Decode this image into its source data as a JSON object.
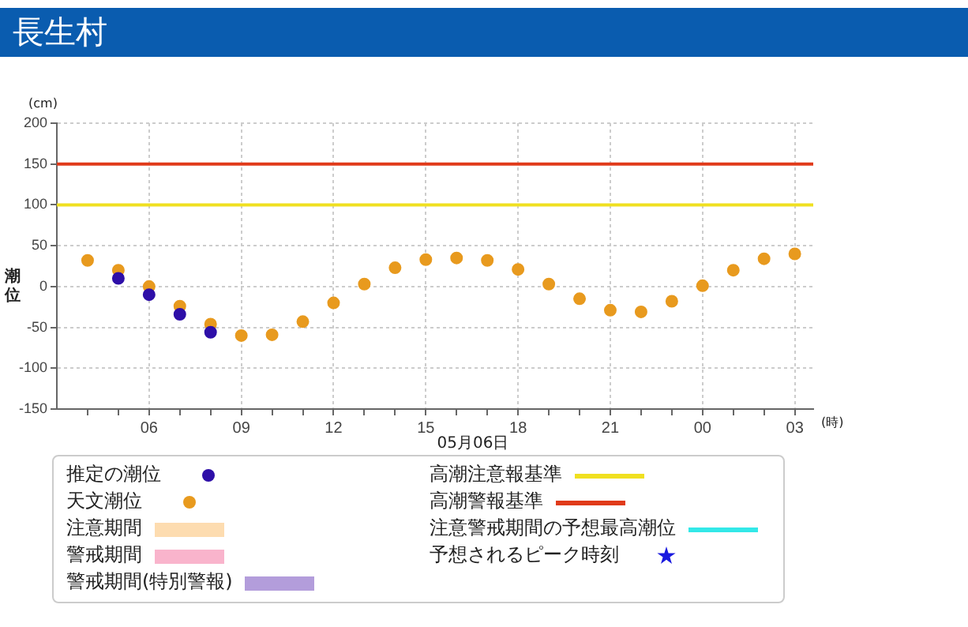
{
  "chart_data": {
    "type": "scatter",
    "title": "長生村",
    "ylabel": "潮位",
    "xlabel": "(時)",
    "annotations": [
      "(cm)",
      "05月06日"
    ],
    "xlim": [
      "--05-06T03:00",
      "--05-07T03:36"
    ],
    "xticks": [
      {
        "value": "--05-06T04:00",
        "label": null
      },
      {
        "value": "--05-06T05:00",
        "label": null
      },
      {
        "value": "--05-06T06:00",
        "label": "06"
      },
      {
        "value": "--05-06T07:00",
        "label": null
      },
      {
        "value": "--05-06T08:00",
        "label": null
      },
      {
        "value": "--05-06T09:00",
        "label": "09"
      },
      {
        "value": "--05-06T10:00",
        "label": null
      },
      {
        "value": "--05-06T11:00",
        "label": null
      },
      {
        "value": "--05-06T12:00",
        "label": "12"
      },
      {
        "value": "--05-06T13:00",
        "label": null
      },
      {
        "value": "--05-06T14:00",
        "label": null
      },
      {
        "value": "--05-06T15:00",
        "label": "15"
      },
      {
        "value": "--05-06T16:00",
        "label": null
      },
      {
        "value": "--05-06T17:00",
        "label": null
      },
      {
        "value": "--05-06T18:00",
        "label": "18"
      },
      {
        "value": "--05-06T19:00",
        "label": null
      },
      {
        "value": "--05-06T20:00",
        "label": null
      },
      {
        "value": "--05-06T21:00",
        "label": "21"
      },
      {
        "value": "--05-06T22:00",
        "label": null
      },
      {
        "value": "--05-06T23:00",
        "label": null
      },
      {
        "value": "--05-07T00:00",
        "label": "00"
      },
      {
        "value": "--05-07T01:00",
        "label": null
      },
      {
        "value": "--05-07T02:00",
        "label": null
      },
      {
        "value": "--05-07T03:00",
        "label": "03"
      }
    ],
    "ylim": [
      -150,
      200
    ],
    "yticks": [
      -150,
      -100,
      -50,
      0,
      50,
      100,
      150,
      200
    ],
    "grid": true,
    "legend": "bottom",
    "marker": "circle",
    "series": [
      {
        "name": "推定の潮位",
        "type": "scatter",
        "color": "#2e0fa8",
        "x": [
          "--05-06T05:00",
          "--05-06T06:00",
          "--05-06T07:00",
          "--05-06T08:00"
        ],
        "values": [
          10,
          -10,
          -34,
          -56
        ]
      },
      {
        "name": "天文潮位",
        "type": "scatter",
        "color": "#e89a1e",
        "x": [
          "--05-06T04:00",
          "--05-06T05:00",
          "--05-06T06:00",
          "--05-06T07:00",
          "--05-06T08:00",
          "--05-06T09:00",
          "--05-06T10:00",
          "--05-06T11:00",
          "--05-06T12:00",
          "--05-06T13:00",
          "--05-06T14:00",
          "--05-06T15:00",
          "--05-06T16:00",
          "--05-06T17:00",
          "--05-06T18:00",
          "--05-06T19:00",
          "--05-06T20:00",
          "--05-06T21:00",
          "--05-06T22:00",
          "--05-06T23:00",
          "--05-07T00:00",
          "--05-07T01:00",
          "--05-07T02:00",
          "--05-07T03:00"
        ],
        "values": [
          32,
          20,
          0,
          -24,
          -46,
          -60,
          -59,
          -43,
          -20,
          3,
          23,
          33,
          35,
          32,
          21,
          3,
          -15,
          -29,
          -31,
          -18,
          1,
          20,
          34,
          40
        ]
      },
      {
        "name": "注意期間",
        "type": "area",
        "color": "#fddcb0"
      },
      {
        "name": "警戒期間",
        "type": "area",
        "color": "#f9b4cc"
      },
      {
        "name": "警戒期間(特別警報)",
        "type": "area",
        "color": "#b39ddb"
      },
      {
        "name": "注意警戒期間の予想最高潮位",
        "type": "line",
        "color": "#33e8e8"
      },
      {
        "name": "予想されるピーク時刻",
        "type": "scatter",
        "marker": "star",
        "color": "#1a1adf"
      }
    ],
    "ref_lines": [
      {
        "axis": "y",
        "value": 100,
        "label": "高潮注意報基準",
        "color": "#f0e020"
      },
      {
        "axis": "y",
        "value": 150,
        "label": "高潮警報基準",
        "color": "#e03a1a"
      }
    ]
  }
}
